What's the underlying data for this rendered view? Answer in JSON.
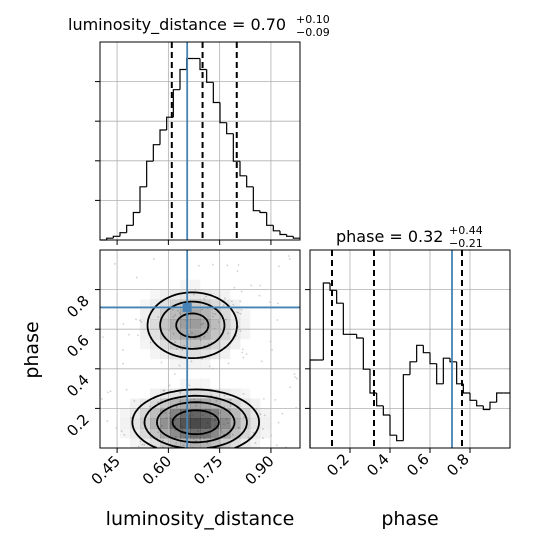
{
  "chart_data": [
    {
      "type": "histogram",
      "panel": "luminosity_distance-1d",
      "title_param": "luminosity_distance",
      "title_value": "0.70",
      "title_err_plus": "+0.10",
      "title_err_minus": "−0.09",
      "xlim": [
        0.4,
        0.985
      ],
      "xticks": [
        0.45,
        0.6,
        0.75,
        0.9
      ],
      "xtick_labels": [
        "0.45",
        "0.60",
        "0.75",
        "0.90"
      ],
      "ymax": 1.0,
      "bin_edges": [
        0.4,
        0.4195,
        0.439,
        0.4585,
        0.478,
        0.4975,
        0.517,
        0.5365,
        0.556,
        0.5755,
        0.595,
        0.6145,
        0.634,
        0.6535,
        0.673,
        0.6925,
        0.712,
        0.7315,
        0.751,
        0.7705,
        0.79,
        0.8095,
        0.829,
        0.8485,
        0.868,
        0.8875,
        0.907,
        0.9265,
        0.946,
        0.9655,
        0.985
      ],
      "counts": [
        0.0,
        0.01,
        0.02,
        0.04,
        0.08,
        0.15,
        0.29,
        0.43,
        0.52,
        0.6,
        0.67,
        0.82,
        0.93,
        0.99,
        0.99,
        0.93,
        0.86,
        0.75,
        0.64,
        0.58,
        0.43,
        0.35,
        0.29,
        0.16,
        0.15,
        0.08,
        0.05,
        0.03,
        0.02,
        0.01
      ],
      "quantile_lines": [
        0.61,
        0.7,
        0.8
      ],
      "truth": 0.655,
      "grid": true
    },
    {
      "type": "histogram",
      "panel": "phase-1d",
      "title_param": "phase",
      "title_value": "0.32",
      "title_err_plus": "+0.44",
      "title_err_minus": "−0.21",
      "xlim": [
        0.0,
        1.0
      ],
      "xticks": [
        0.2,
        0.4,
        0.6,
        0.8
      ],
      "xtick_labels": [
        "0.2",
        "0.4",
        "0.6",
        "0.8"
      ],
      "ymax": 1.0,
      "bin_edges": [
        0.0,
        0.0333,
        0.0667,
        0.1,
        0.1333,
        0.1667,
        0.2,
        0.2333,
        0.2667,
        0.3,
        0.3333,
        0.3667,
        0.4,
        0.4333,
        0.4667,
        0.5,
        0.5333,
        0.5667,
        0.6,
        0.6333,
        0.6667,
        0.7,
        0.7333,
        0.7667,
        0.8,
        0.8333,
        0.8667,
        0.9,
        0.9333,
        0.9667,
        1.0
      ],
      "counts": [
        0.48,
        0.48,
        0.9,
        0.86,
        0.79,
        0.62,
        0.62,
        0.6,
        0.43,
        0.3,
        0.23,
        0.18,
        0.07,
        0.04,
        0.4,
        0.47,
        0.56,
        0.52,
        0.46,
        0.35,
        0.49,
        0.47,
        0.35,
        0.3,
        0.26,
        0.23,
        0.21,
        0.25,
        0.3,
        0.3
      ],
      "quantile_lines": [
        0.11,
        0.32,
        0.76
      ],
      "truth": 0.71,
      "grid": true
    },
    {
      "type": "heatmap",
      "panel": "2d-density",
      "xlabel": "luminosity_distance",
      "ylabel": "phase",
      "x_axis_label_below": "phase",
      "xlim": [
        0.4,
        0.985
      ],
      "ylim": [
        0.0,
        1.0
      ],
      "xticks": [
        0.45,
        0.6,
        0.75,
        0.9
      ],
      "xtick_labels": [
        "0.45",
        "0.60",
        "0.75",
        "0.90"
      ],
      "yticks": [
        0.2,
        0.4,
        0.6,
        0.8
      ],
      "ytick_labels": [
        "0.2",
        "0.4",
        "0.6",
        "0.8"
      ],
      "density_peaks": [
        {
          "x": 0.68,
          "y": 0.13,
          "sx": 0.09,
          "sy": 0.08,
          "w": 1.0
        },
        {
          "x": 0.67,
          "y": 0.62,
          "sx": 0.075,
          "sy": 0.095,
          "w": 0.55
        }
      ],
      "truth_x": 0.655,
      "truth_y": 0.71,
      "contour_levels": [
        0.12,
        0.25,
        0.45,
        0.75
      ],
      "grid": true
    }
  ],
  "colors": {
    "truth": "#4682b4",
    "hist": "#000000",
    "grid": "#b0b0b0"
  }
}
